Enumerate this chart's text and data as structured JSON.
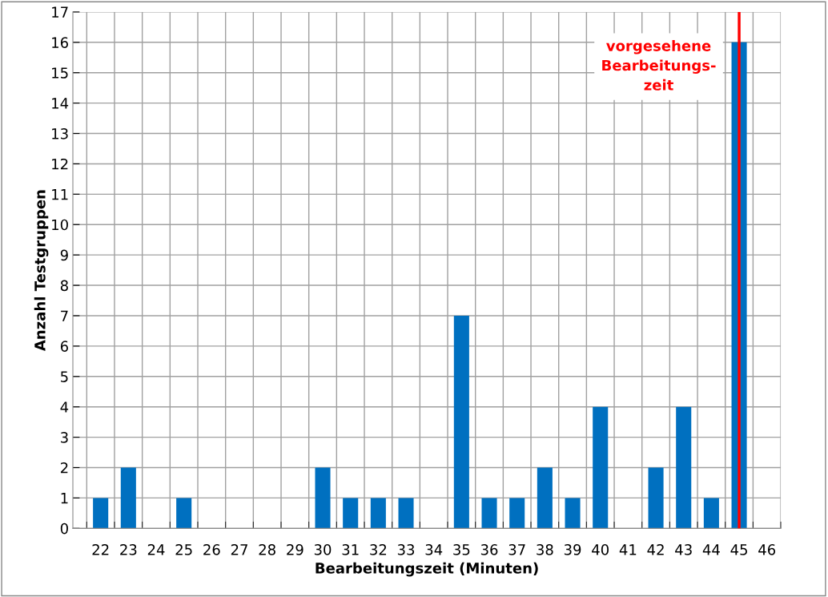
{
  "chart_data": {
    "type": "bar",
    "xlabel": "Bearbeitungszeit (Minuten)",
    "ylabel": "Anzahl Testgruppen",
    "categories": [
      "22",
      "23",
      "24",
      "25",
      "26",
      "27",
      "28",
      "29",
      "30",
      "31",
      "32",
      "33",
      "34",
      "35",
      "36",
      "37",
      "38",
      "39",
      "40",
      "41",
      "42",
      "43",
      "44",
      "45",
      "46"
    ],
    "values": [
      1,
      2,
      0,
      1,
      0,
      0,
      0,
      0,
      2,
      1,
      1,
      1,
      0,
      7,
      1,
      1,
      2,
      1,
      4,
      0,
      2,
      4,
      1,
      16,
      0
    ],
    "color": "#0070c0",
    "ylim": [
      0,
      17
    ],
    "yticks": [
      0,
      1,
      2,
      3,
      4,
      5,
      6,
      7,
      8,
      9,
      10,
      11,
      12,
      13,
      14,
      15,
      16,
      17
    ],
    "grid": true,
    "ref_lines": [
      {
        "axis": "x",
        "value": "45",
        "label": "vorgesehene\nBearbeitungs-\nzeit",
        "color": "#ff0000"
      }
    ]
  }
}
